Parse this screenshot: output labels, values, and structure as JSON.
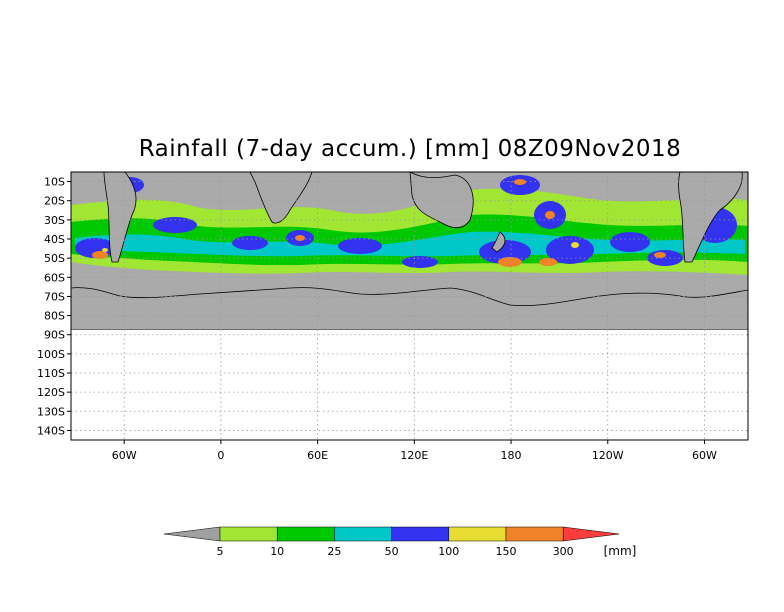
{
  "title": "Rainfall (7-day accum.) [mm] 08Z09Nov2018",
  "lat_axis": {
    "labels": [
      "10S",
      "20S",
      "30S",
      "40S",
      "50S",
      "60S",
      "70S",
      "80S",
      "90S",
      "100S",
      "110S",
      "120S",
      "130S",
      "140S"
    ],
    "values": [
      -10,
      -20,
      -30,
      -40,
      -50,
      -60,
      -70,
      -80,
      -90,
      -100,
      -110,
      -120,
      -130,
      -140
    ],
    "range": [
      -5,
      -145
    ]
  },
  "lon_axis": {
    "labels": [
      "60W",
      "0",
      "60E",
      "120E",
      "180",
      "120W",
      "60W"
    ],
    "values": [
      -60,
      0,
      60,
      120,
      180,
      240,
      300
    ],
    "range": [
      -93,
      327
    ]
  },
  "colorbar": {
    "labels": [
      "5",
      "10",
      "25",
      "50",
      "100",
      "150",
      "300"
    ],
    "unit": "[mm]",
    "colors": [
      "#a0a0a0",
      "#a0e632",
      "#00c800",
      "#00c8c8",
      "#3232f0",
      "#e6dc32",
      "#f08228",
      "#fa3c3c"
    ]
  },
  "map_colors": {
    "land_no_data": "#aaaaaa",
    "antarctica": "#aaaaaa",
    "coastline": "#000000",
    "grid": "#9a9a9a"
  }
}
